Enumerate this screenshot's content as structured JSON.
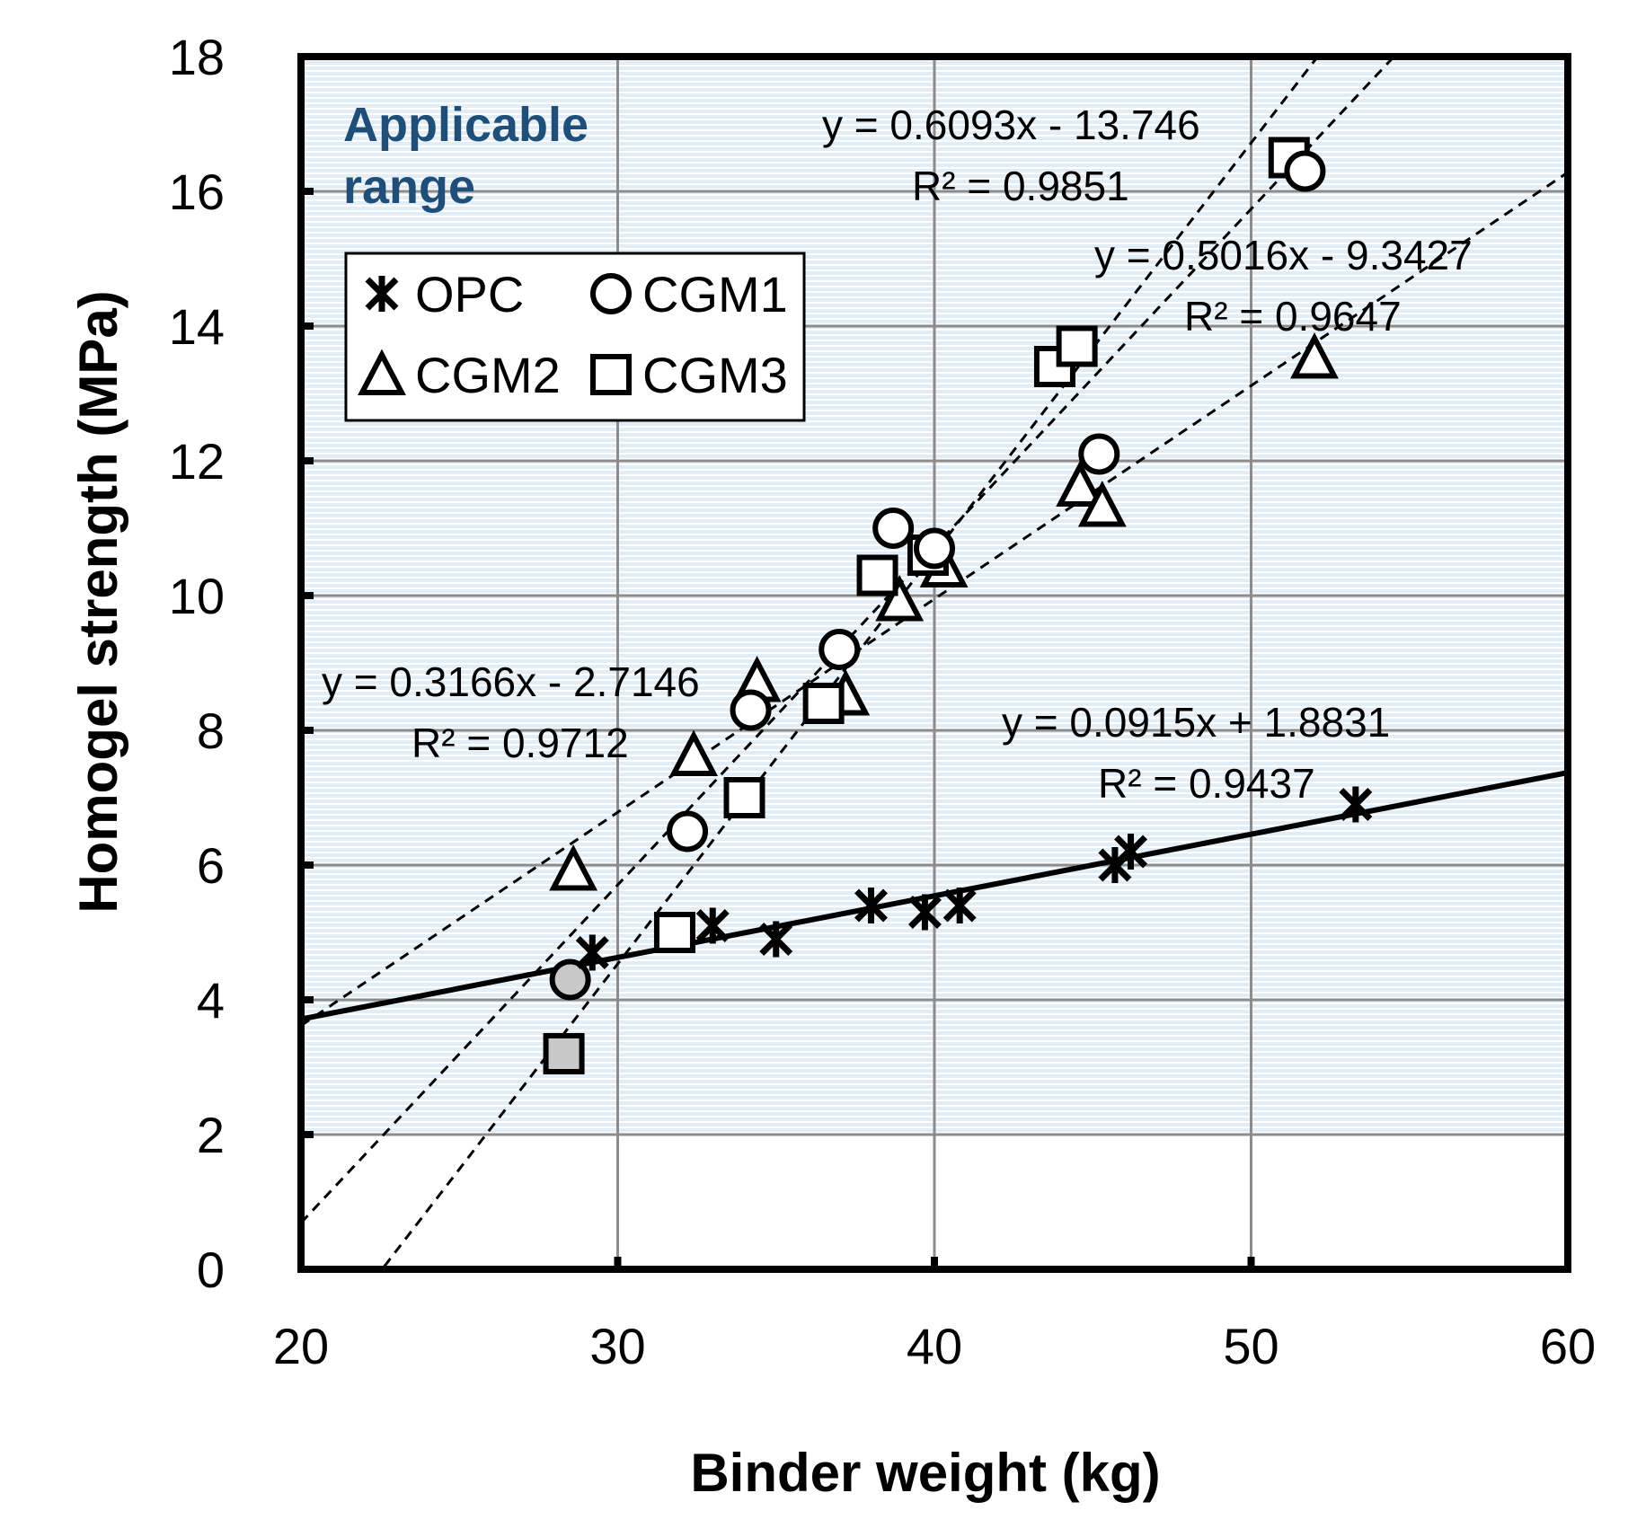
{
  "chart_data": {
    "type": "scatter",
    "title": "",
    "xlabel": "Binder weight (kg)",
    "ylabel": "Homogel strength (MPa)",
    "xlim": [
      20,
      60
    ],
    "ylim": [
      0,
      18
    ],
    "xticks": [
      20,
      30,
      40,
      50,
      60
    ],
    "yticks": [
      0,
      2,
      4,
      6,
      8,
      10,
      12,
      14,
      16,
      18
    ],
    "grid": true,
    "applicable_range": {
      "label_line1": "Applicable",
      "label_line2": "range",
      "y_from": 2,
      "y_to": 18
    },
    "legend_position": "top-left",
    "series": [
      {
        "name": "OPC",
        "marker": "asterisk",
        "points": [
          [
            29.2,
            4.7
          ],
          [
            33.0,
            5.1
          ],
          [
            35.0,
            4.9
          ],
          [
            38.0,
            5.4
          ],
          [
            39.7,
            5.3
          ],
          [
            40.8,
            5.4
          ],
          [
            45.7,
            6.0
          ],
          [
            46.2,
            6.2
          ],
          [
            53.3,
            6.9
          ]
        ],
        "fit": {
          "slope": 0.0915,
          "intercept": 1.8831,
          "equation": "y = 0.0915x + 1.8831",
          "r2": "R² = 0.9437",
          "style": "solid"
        }
      },
      {
        "name": "CGM1",
        "marker": "circle",
        "points": [
          [
            32.2,
            6.5
          ],
          [
            34.2,
            8.3
          ],
          [
            37.0,
            9.2
          ],
          [
            38.7,
            11.0
          ],
          [
            40.0,
            10.7
          ],
          [
            45.2,
            12.1
          ],
          [
            51.7,
            16.3
          ]
        ],
        "points_gray": [
          [
            28.5,
            4.3
          ]
        ],
        "fit": {
          "slope": 0.5016,
          "intercept": -9.3427,
          "equation": "y = 0.5016x - 9.3427",
          "r2": "R² = 0.9647",
          "style": "dashed"
        }
      },
      {
        "name": "CGM2",
        "marker": "triangle",
        "points": [
          [
            28.6,
            5.9
          ],
          [
            32.4,
            7.6
          ],
          [
            34.4,
            8.7
          ],
          [
            37.2,
            8.5
          ],
          [
            38.9,
            9.9
          ],
          [
            40.3,
            10.4
          ],
          [
            44.6,
            11.6
          ],
          [
            45.3,
            11.3
          ],
          [
            52.0,
            13.5
          ]
        ],
        "fit": {
          "slope": 0.3166,
          "intercept": -2.7146,
          "equation": "y = 0.3166x - 2.7146",
          "r2": "R² = 0.9712",
          "style": "dashed"
        }
      },
      {
        "name": "CGM3",
        "marker": "square",
        "points": [
          [
            31.8,
            5.0
          ],
          [
            34.0,
            7.0
          ],
          [
            36.5,
            8.4
          ],
          [
            38.2,
            10.3
          ],
          [
            39.8,
            10.6
          ],
          [
            43.8,
            13.4
          ],
          [
            44.5,
            13.7
          ],
          [
            51.2,
            16.5
          ]
        ],
        "points_gray": [
          [
            28.3,
            3.2
          ]
        ],
        "fit": {
          "slope": 0.6093,
          "intercept": -13.746,
          "equation": "y = 0.6093x - 13.746",
          "r2": "R² = 0.9851",
          "style": "dashed"
        }
      }
    ],
    "annotations": [
      {
        "series": "CGM3",
        "line1": "y = 0.6093x - 13.746",
        "line2": "R² = 0.9851"
      },
      {
        "series": "CGM1",
        "line1": "y = 0.5016x - 9.3427",
        "line2": "R² = 0.9647"
      },
      {
        "series": "CGM2",
        "line1": "y = 0.3166x - 2.7146",
        "line2": "R² = 0.9712"
      },
      {
        "series": "OPC",
        "line1": "y = 0.0915x + 1.8831",
        "line2": "R² = 0.9437"
      }
    ]
  }
}
